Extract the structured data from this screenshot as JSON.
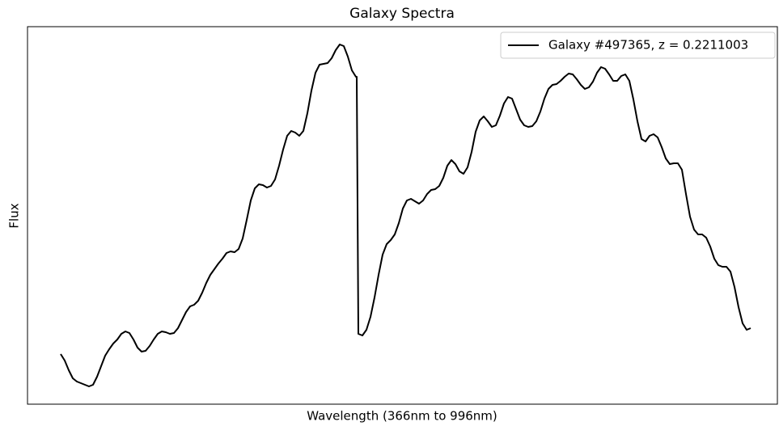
{
  "chart_data": {
    "type": "line",
    "title": "Galaxy Spectra",
    "x_label": "Wavelength (366nm to 996nm)",
    "y_label": "Flux",
    "legend": "upper right",
    "xlim": [
      -41,
      886
    ],
    "ylim": [
      0,
      467
    ],
    "x": [
      0,
      5,
      10,
      15,
      20,
      25,
      30,
      35,
      40,
      45,
      50,
      55,
      60,
      65,
      70,
      75,
      80,
      85,
      90,
      95,
      100,
      105,
      110,
      115,
      120,
      125,
      130,
      135,
      140,
      145,
      150,
      155,
      160,
      165,
      170,
      175,
      180,
      185,
      190,
      195,
      200,
      205,
      210,
      215,
      220,
      225,
      230,
      235,
      240,
      245,
      250,
      255,
      260,
      265,
      270,
      275,
      280,
      285,
      290,
      295,
      300,
      305,
      310,
      315,
      320,
      325,
      330,
      335,
      340,
      345,
      350,
      355,
      360,
      365,
      366,
      368,
      373,
      378,
      383,
      388,
      393,
      398,
      403,
      408,
      413,
      418,
      423,
      428,
      433,
      438,
      443,
      448,
      453,
      458,
      463,
      468,
      473,
      478,
      483,
      488,
      493,
      498,
      503,
      508,
      513,
      518,
      523,
      528,
      533,
      538,
      543,
      548,
      553,
      558,
      563,
      568,
      573,
      578,
      583,
      588,
      593,
      598,
      603,
      608,
      613,
      618,
      623,
      628,
      633,
      638,
      643,
      648,
      653,
      658,
      663,
      668,
      673,
      678,
      683,
      688,
      693,
      698,
      703,
      708,
      713,
      718,
      723,
      728,
      733,
      738,
      743,
      748,
      753,
      758,
      763,
      768,
      773,
      778,
      783,
      788,
      793,
      798,
      803,
      808,
      813,
      818,
      823,
      828,
      833,
      838,
      843,
      848,
      853
    ],
    "series": [
      {
        "name": "Galaxy #497365, z = 0.2211003",
        "color": "#000000",
        "values": [
          62,
          54,
          42,
          32,
          28,
          26,
          24,
          22,
          24,
          34,
          47,
          60,
          68,
          75,
          80,
          87,
          90,
          88,
          80,
          70,
          65,
          66,
          72,
          80,
          87,
          90,
          89,
          87,
          88,
          94,
          104,
          114,
          121,
          123,
          128,
          138,
          150,
          160,
          167,
          174,
          180,
          187,
          189,
          188,
          192,
          205,
          228,
          252,
          267,
          272,
          271,
          268,
          270,
          278,
          295,
          315,
          332,
          338,
          336,
          332,
          338,
          360,
          388,
          410,
          420,
          421,
          422,
          428,
          438,
          445,
          443,
          430,
          413,
          405,
          405,
          87,
          85,
          92,
          108,
          132,
          160,
          185,
          198,
          203,
          210,
          224,
          242,
          252,
          254,
          251,
          248,
          252,
          260,
          265,
          266,
          270,
          280,
          295,
          302,
          297,
          288,
          285,
          293,
          312,
          337,
          351,
          356,
          350,
          343,
          345,
          357,
          372,
          380,
          378,
          365,
          352,
          345,
          343,
          344,
          350,
          362,
          378,
          390,
          395,
          396,
          400,
          405,
          409,
          408,
          402,
          395,
          390,
          392,
          399,
          410,
          417,
          415,
          408,
          400,
          400,
          406,
          408,
          400,
          377,
          350,
          328,
          325,
          332,
          334,
          330,
          318,
          304,
          297,
          298,
          298,
          290,
          260,
          232,
          216,
          210,
          210,
          206,
          195,
          180,
          172,
          170,
          170,
          164,
          145,
          120,
          100,
          92,
          94
        ]
      }
    ]
  }
}
